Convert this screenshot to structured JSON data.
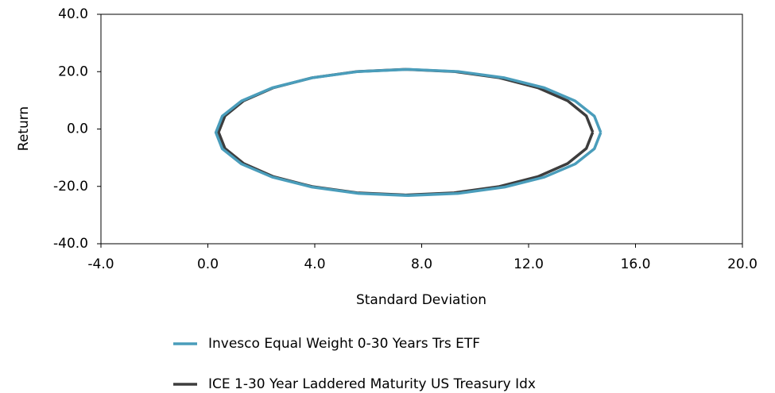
{
  "chart_data": {
    "type": "line",
    "x_label": "Standard Deviation",
    "y_label": "Return",
    "xlim": [
      -4,
      20
    ],
    "ylim": [
      -40,
      40
    ],
    "xticks": [
      {
        "value": -4,
        "label": "-4.0"
      },
      {
        "value": 0,
        "label": "0.0"
      },
      {
        "value": 4,
        "label": "4.0"
      },
      {
        "value": 8,
        "label": "8.0"
      },
      {
        "value": 12,
        "label": "12.0"
      },
      {
        "value": 16,
        "label": "16.0"
      },
      {
        "value": 20,
        "label": "20.0"
      }
    ],
    "yticks": [
      {
        "value": -40,
        "label": "-40.0"
      },
      {
        "value": -20,
        "label": "-20.0"
      },
      {
        "value": 0,
        "label": "0.0"
      },
      {
        "value": 20,
        "label": "20.0"
      },
      {
        "value": 40,
        "label": "40.0"
      }
    ],
    "legend": "bottom",
    "series": [
      {
        "name": "Invesco Equal Weight 0-30 Years Trs ETF",
        "color": "#4a9dbb",
        "x": [
          14.7,
          14.46,
          13.74,
          12.59,
          11.1,
          9.36,
          7.5,
          5.64,
          3.9,
          2.41,
          1.26,
          0.54,
          0.3,
          0.54,
          1.26,
          2.41,
          3.9,
          5.64,
          7.5,
          9.36,
          11.1,
          12.59,
          13.74,
          14.46,
          14.7
        ],
        "values": [
          -1.2,
          4.5,
          9.8,
          14.36,
          17.85,
          20.05,
          20.8,
          20.05,
          17.85,
          14.36,
          9.8,
          4.5,
          -1.2,
          -6.9,
          -12.2,
          -16.76,
          -20.25,
          -22.45,
          -23.2,
          -22.45,
          -20.25,
          -16.76,
          -12.2,
          -6.9,
          -1.2
        ]
      },
      {
        "name": "ICE 1-30 Year Laddered Maturity US Treasury Idx",
        "color": "#3d3d3d",
        "x": [
          14.4,
          14.16,
          13.46,
          12.35,
          10.9,
          9.21,
          7.4,
          5.59,
          3.9,
          2.45,
          1.34,
          0.64,
          0.4,
          0.64,
          1.34,
          2.45,
          3.9,
          5.59,
          7.4,
          9.21,
          10.9,
          12.35,
          13.46,
          14.16,
          14.4
        ],
        "values": [
          -1.1,
          4.57,
          9.85,
          14.39,
          17.87,
          20.05,
          20.8,
          20.05,
          17.87,
          14.39,
          9.85,
          4.57,
          -1.1,
          -6.77,
          -12.05,
          -16.59,
          -20.07,
          -22.25,
          -23.0,
          -22.25,
          -20.07,
          -16.59,
          -12.05,
          -6.77,
          -1.1
        ]
      }
    ]
  }
}
